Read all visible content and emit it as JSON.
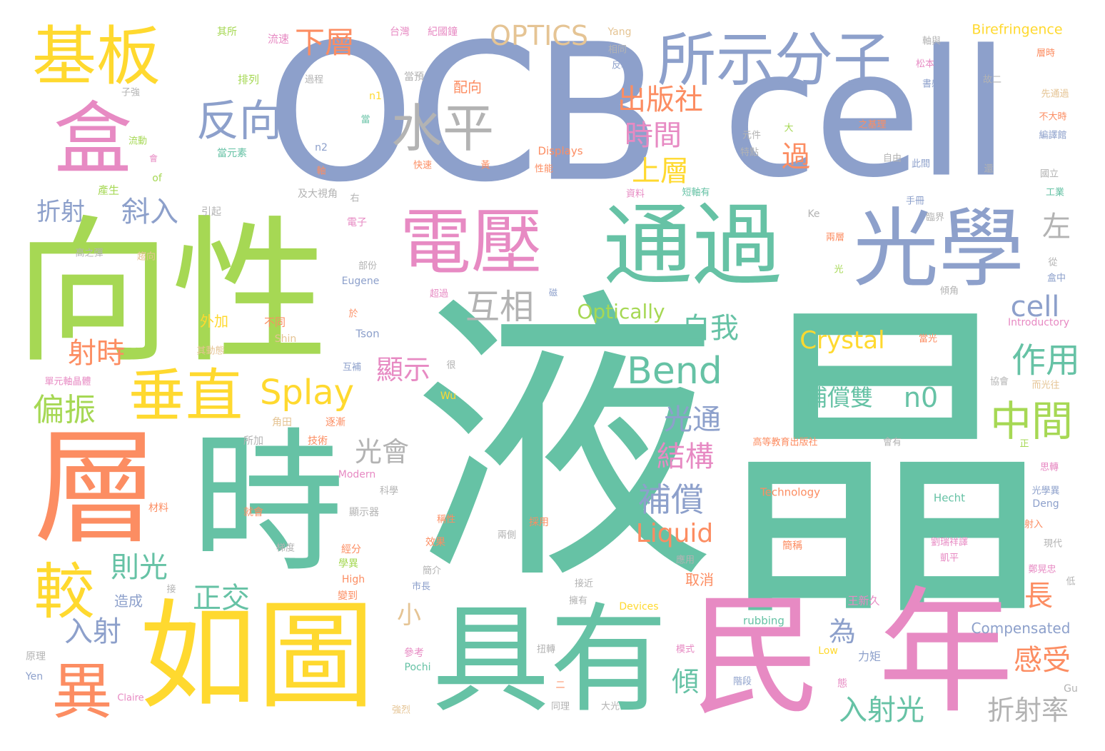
{
  "colors": {
    "green": "#66c2a5",
    "orange": "#fc8d62",
    "blue": "#8da0cb",
    "pink": "#e78ac3",
    "lime": "#a6d854",
    "yellow": "#ffd92f",
    "tan": "#e5c494",
    "gray": "#b3b3b3"
  },
  "words": {
    "w1": "液",
    "w2": "晶",
    "w3": "OCB",
    "w4": "cell",
    "w5": "向性",
    "w6": "層",
    "w7": "時",
    "w8": "如圖",
    "w9": "具有",
    "w10": "民",
    "w11": "年",
    "w12": "通過",
    "w13": "光學",
    "w14": "電壓",
    "w15": "所示分子",
    "w16": "基板",
    "w17": "盒",
    "w18": "水平",
    "w19": "反向",
    "w20": "垂直",
    "w21": "較",
    "w22": "異",
    "w23": "Splay",
    "w24": "Bend",
    "w25": "中間",
    "w26": "OPTICS",
    "w27": "互相",
    "w28": "出版社",
    "w29": "時間",
    "w30": "上層",
    "w31": "下層",
    "w32": "自我",
    "w33": "cell",
    "w34": "Optically",
    "w35": "Crystal",
    "w36": "補償雙",
    "w37": "n0",
    "w38": "作用",
    "w39": "左",
    "w40": "過",
    "w41": "斜入",
    "w42": "折射",
    "w43": "射時",
    "w44": "偏振",
    "w45": "顯示",
    "w46": "光通",
    "w47": "結構",
    "w48": "補償",
    "w49": "Liquid",
    "w50": "光會",
    "w51": "則光",
    "w52": "正交",
    "w53": "入射",
    "w54": "小",
    "w55": "為",
    "w56": "長",
    "w57": "感受",
    "w58": "傾",
    "w59": "入射光",
    "w60": "折射率",
    "w61": "Birefringence",
    "w62": "Compensated",
    "w63": "Introductory",
    "w64": "Technology",
    "w65": "Hecht",
    "w66": "Displays",
    "w67": "Eugene",
    "w68": "Tson",
    "w69": "Shin",
    "w70": "Modern",
    "w71": "High",
    "w72": "Low",
    "w73": "rubbing",
    "w74": "Pochi",
    "w75": "Devices",
    "w76": "Claire",
    "w77": "Yen",
    "w78": "Gu",
    "w79": "Ke",
    "w80": "Wu",
    "w81": "Yang",
    "w82": "Deng",
    "w83": "of",
    "w84": "n1",
    "w85": "n2",
    "w86": "其所",
    "w87": "流速",
    "w88": "台灣",
    "w89": "紀國鐘",
    "w90": "排列",
    "w91": "過程",
    "w92": "當預",
    "w93": "配向",
    "w94": "子強",
    "w95": "流動",
    "w96": "當元素",
    "w97": "會",
    "w98": "產生",
    "w99": "引起",
    "w100": "及大視角",
    "w101": "右",
    "w102": "電子",
    "w103": "高之彈",
    "w104": "趨向",
    "w105": "部份",
    "w106": "外加",
    "w107": "不同",
    "w108": "其動態",
    "w109": "互補",
    "w110": "很",
    "w111": "單元軸晶體",
    "w112": "角田",
    "w113": "逐漸",
    "w114": "所加",
    "w115": "技術",
    "w116": "科學",
    "w117": "顯示器",
    "w118": "材料",
    "w119": "就會",
    "w120": "梯度",
    "w121": "經分",
    "w122": "學異",
    "w123": "變到",
    "w124": "造成",
    "w125": "接",
    "w126": "原理",
    "w127": "參考",
    "w128": "強烈",
    "w129": "大光",
    "w130": "同理",
    "w131": "扭轉",
    "w132": "二",
    "w133": "模式",
    "w134": "階段",
    "w135": "力矩",
    "w136": "態",
    "w137": "王新久",
    "w138": "擁有",
    "w139": "接近",
    "w140": "市長",
    "w141": "簡介",
    "w142": "效果",
    "w143": "兩側",
    "w144": "採用",
    "w145": "稱性",
    "w146": "應用",
    "w147": "取消",
    "w148": "簡稱",
    "w149": "劉瑞祥譯",
    "w150": "凱平",
    "w151": "高等教育出版社",
    "w152": "會有",
    "w153": "正",
    "w154": "思轉",
    "w155": "光學異",
    "w156": "射入",
    "w157": "現代",
    "w158": "鄭晃忠",
    "w159": "低",
    "w160": "協會",
    "w161": "而光往",
    "w162": "當光",
    "w163": "從",
    "w164": "盒中",
    "w165": "傾角",
    "w166": "光",
    "w167": "兩層",
    "w168": "臨界",
    "w169": "手冊",
    "w170": "資料",
    "w171": "短軸有",
    "w172": "性能",
    "w173": "快速",
    "w174": "黃",
    "w175": "自由",
    "w176": "此間",
    "w177": "特點",
    "w178": "元件",
    "w179": "之基理",
    "w180": "大",
    "w181": "對",
    "w182": "相同",
    "w183": "反轉",
    "w184": "軸與",
    "w185": "松本",
    "w186": "書感",
    "w187": "故二",
    "w188": "先通過",
    "w189": "不大時",
    "w190": "編譯館",
    "w191": "還",
    "w192": "國立",
    "w193": "工業",
    "w194": "層時",
    "w195": "超過",
    "w196": "於",
    "w197": "當",
    "w198": "軸",
    "w199": "磁"
  }
}
